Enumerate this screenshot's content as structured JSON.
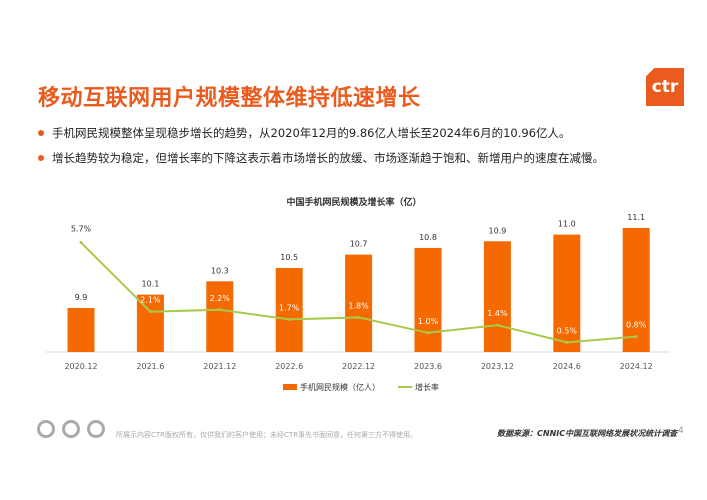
{
  "header": {
    "title": "移动互联网用户规模整体维持低速增长",
    "logo_text": "ctr"
  },
  "bullets": [
    "手机网民规模整体呈现稳步增长的趋势，从2020年12月的9.86亿人增长至2024年6月的10.96亿人。",
    "增长趋势较为稳定，但增长率的下降这表示着市场增长的放缓、市场逐渐趋于饱和、新增用户的速度在减慢。"
  ],
  "footer": {
    "disclaimer": "所展示内容CTR版权所有，仅供我们的客户使用；未经CTR事先书面同意，任何第三方不得使用。",
    "source": "数据来源：CNNIC中国互联网络发展状况统计调查",
    "page": "4"
  },
  "colors": {
    "accent": "#ea5b1d",
    "bar": "#f56a00",
    "line": "#a9c94a"
  },
  "chart_data": {
    "type": "bar+line",
    "title": "中国手机网民规模及增长率（亿）",
    "categories": [
      "2020.12",
      "2021.6",
      "2021.12",
      "2022.6",
      "2022.12",
      "2023.6",
      "2023.12",
      "2024.6",
      "2024.12"
    ],
    "series": [
      {
        "name": "手机网民规模（亿人）",
        "type": "bar",
        "values": [
          9.9,
          10.1,
          10.3,
          10.5,
          10.7,
          10.8,
          10.9,
          11.0,
          11.1
        ],
        "labels": [
          "9.9",
          "10.1",
          "10.3",
          "10.5",
          "10.7",
          "10.8",
          "10.9",
          "11.0",
          "11.1"
        ]
      },
      {
        "name": "增长率",
        "type": "line",
        "values": [
          5.7,
          2.1,
          2.2,
          1.7,
          1.8,
          1.0,
          1.4,
          0.5,
          0.8
        ],
        "labels": [
          "5.7%",
          "2.1%",
          "2.2%",
          "1.7%",
          "1.8%",
          "1.0%",
          "1.4%",
          "0.5%",
          "0.8%"
        ]
      }
    ],
    "legend": "bottom",
    "grid": false
  }
}
